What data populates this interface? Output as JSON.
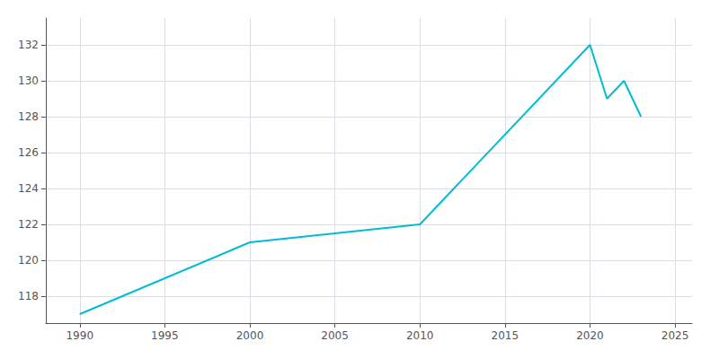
{
  "chart_data": {
    "type": "line",
    "x": [
      1990,
      2000,
      2005,
      2010,
      2020,
      2021,
      2022,
      2023
    ],
    "values": [
      117,
      121,
      121.5,
      122,
      132,
      129,
      130,
      128
    ],
    "color": "#00BCD4",
    "xlim": [
      1988,
      2026
    ],
    "xticks": [
      1990,
      1995,
      2000,
      2005,
      2010,
      2015,
      2020,
      2025
    ],
    "ylim": [
      116.5,
      133.5
    ],
    "yticks": [
      118,
      120,
      122,
      124,
      126,
      128,
      130,
      132
    ],
    "grid": true
  }
}
